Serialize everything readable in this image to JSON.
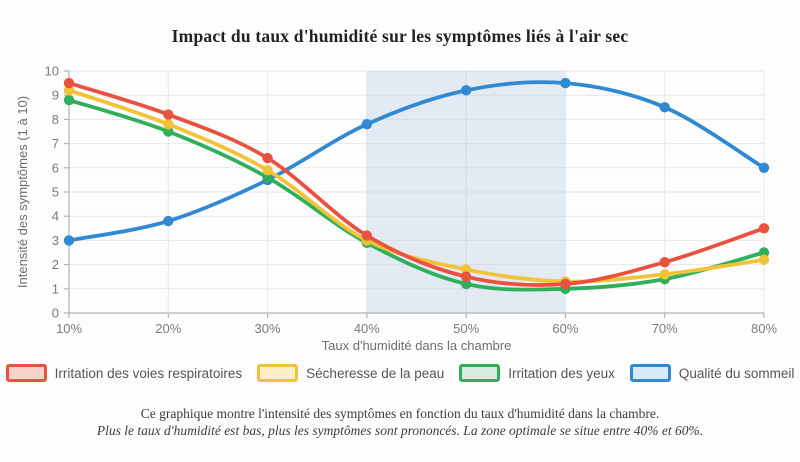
{
  "page": {
    "footer_line1": "Ce graphique montre l'intensité des symptômes en fonction du taux d'humidité dans la chambre.",
    "footer_line2": "Plus le taux d'humidité est bas, plus les symptômes sont prononcés. La zone optimale se situe entre 40% et 60%."
  },
  "chart_data": {
    "type": "line",
    "title": "Impact du taux d'humidité sur les symptômes liés à l'air sec",
    "categories": [
      "10%",
      "20%",
      "30%",
      "40%",
      "50%",
      "60%",
      "70%",
      "80%"
    ],
    "series": [
      {
        "name": "Irritation des voies respiratoires",
        "color": "#e8523f",
        "swatch_fill": "#f8d2cb",
        "values": [
          9.5,
          8.2,
          6.4,
          3.2,
          1.5,
          1.2,
          2.1,
          3.5
        ]
      },
      {
        "name": "Sécheresse de la peau",
        "color": "#f2c237",
        "swatch_fill": "#fbedc4",
        "values": [
          9.2,
          7.8,
          5.9,
          3.0,
          1.8,
          1.3,
          1.6,
          2.2
        ]
      },
      {
        "name": "Irritation des yeux",
        "color": "#2fae5c",
        "swatch_fill": "#d6ecdf",
        "values": [
          8.8,
          7.5,
          5.6,
          2.9,
          1.2,
          1.0,
          1.4,
          2.5
        ]
      },
      {
        "name": "Qualité du sommeil",
        "color": "#3089d2",
        "swatch_fill": "#d8e9f9",
        "values": [
          3.0,
          3.8,
          5.5,
          7.8,
          9.2,
          9.5,
          8.5,
          6.0
        ]
      }
    ],
    "xlabel": "Taux d'humidité dans la chambre",
    "ylabel": "Intensité des symptômes (1 à 10)",
    "ylim": [
      0,
      10
    ],
    "y_ticks": [
      0,
      1,
      2,
      3,
      4,
      5,
      6,
      7,
      8,
      9,
      10
    ],
    "grid": true,
    "legend_position": "bottom",
    "optimal_zone": {
      "from": "40%",
      "to": "60%",
      "fill": "rgba(187,203,226,0.38)"
    },
    "style": {
      "grid_color": "#e7e7e7",
      "axis_color": "#b3b3b3",
      "tick_label_color": "#7b7b7b",
      "axis_title_color": "#6e6e6e"
    }
  }
}
